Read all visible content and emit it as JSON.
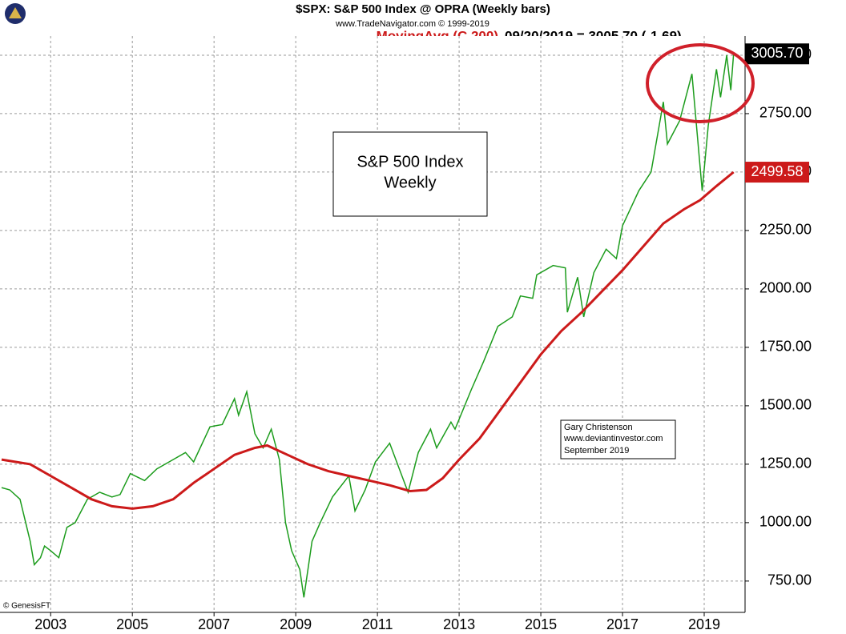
{
  "chart_data": {
    "type": "line",
    "title": "$SPX:  S&P 500 Index @ OPRA  (Weekly bars)",
    "subtitle": "www.TradeNavigator.com © 1999-2019",
    "indicator_name": "MovingAvg (C,200)",
    "indicator_value": "09/20/2019 = 3005.70 (-1.69)",
    "box_title": [
      "S&P 500 Index",
      "Weekly"
    ],
    "credit": [
      "Gary Christenson",
      "www.deviantinvestor.com",
      "September 2019"
    ],
    "copyright": "© GenesisFT",
    "xlim": [
      2001.76,
      2020.0
    ],
    "xticks": [
      2003,
      2005,
      2007,
      2009,
      2011,
      2013,
      2015,
      2017,
      2019
    ],
    "ylim": [
      616,
      3082
    ],
    "yticks": [
      {
        "value": 750,
        "label": "750.00"
      },
      {
        "value": 1000,
        "label": "1000.00"
      },
      {
        "value": 1250,
        "label": "1250.00"
      },
      {
        "value": 1500,
        "label": "1500.00"
      },
      {
        "value": 1750,
        "label": "1750.00"
      },
      {
        "value": 2000,
        "label": "2000.00"
      },
      {
        "value": 2250,
        "label": "2250.00"
      },
      {
        "value": 2500,
        "label": "2500.00"
      },
      {
        "value": 2750,
        "label": "2750.00"
      },
      {
        "value": 3000,
        "label": "3000.00"
      }
    ],
    "grid": true,
    "series": [
      {
        "name": "$SPX",
        "color": "#1c9c1c",
        "label_color": "#000000",
        "last_value_label": "3005.70",
        "x": [
          2001.8,
          2002.0,
          2002.25,
          2002.5,
          2002.6,
          2002.75,
          2002.85,
          2003.0,
          2003.2,
          2003.4,
          2003.6,
          2003.9,
          2004.2,
          2004.5,
          2004.7,
          2004.95,
          2005.3,
          2005.6,
          2005.9,
          2006.3,
          2006.5,
          2006.9,
          2007.2,
          2007.5,
          2007.6,
          2007.8,
          2008.0,
          2008.2,
          2008.4,
          2008.6,
          2008.75,
          2008.9,
          2009.1,
          2009.2,
          2009.4,
          2009.6,
          2009.9,
          2010.3,
          2010.45,
          2010.7,
          2010.95,
          2011.3,
          2011.6,
          2011.75,
          2012.0,
          2012.3,
          2012.45,
          2012.8,
          2012.9,
          2013.3,
          2013.6,
          2013.95,
          2014.3,
          2014.5,
          2014.8,
          2014.9,
          2015.3,
          2015.6,
          2015.65,
          2015.9,
          2016.05,
          2016.3,
          2016.6,
          2016.85,
          2017.0,
          2017.4,
          2017.7,
          2018.0,
          2018.1,
          2018.4,
          2018.7,
          2018.95,
          2019.1,
          2019.3,
          2019.4,
          2019.55,
          2019.65,
          2019.72
        ],
        "values": [
          1150,
          1140,
          1100,
          920,
          820,
          850,
          900,
          880,
          850,
          980,
          1000,
          1100,
          1130,
          1110,
          1120,
          1210,
          1180,
          1230,
          1260,
          1300,
          1260,
          1410,
          1420,
          1530,
          1460,
          1560,
          1380,
          1320,
          1400,
          1270,
          1000,
          880,
          800,
          680,
          920,
          1000,
          1110,
          1200,
          1050,
          1140,
          1260,
          1340,
          1200,
          1130,
          1300,
          1400,
          1320,
          1430,
          1400,
          1570,
          1690,
          1840,
          1880,
          1970,
          1960,
          2060,
          2100,
          2090,
          1900,
          2050,
          1880,
          2070,
          2170,
          2130,
          2270,
          2420,
          2500,
          2800,
          2620,
          2720,
          2920,
          2420,
          2700,
          2940,
          2820,
          3000,
          2850,
          3005.7
        ]
      },
      {
        "name": "MovingAvg (C,200)",
        "color": "#cc1a1a",
        "label_color": "#cc1a1a",
        "last_value_label": "2499.58",
        "x": [
          2001.8,
          2002.5,
          2003.0,
          2003.5,
          2004.0,
          2004.5,
          2005.0,
          2005.5,
          2006.0,
          2006.5,
          2007.0,
          2007.5,
          2008.0,
          2008.3,
          2008.8,
          2009.3,
          2009.8,
          2010.3,
          2010.8,
          2011.3,
          2011.8,
          2012.2,
          2012.6,
          2013.0,
          2013.5,
          2014.0,
          2014.5,
          2015.0,
          2015.5,
          2016.0,
          2016.5,
          2017.0,
          2017.5,
          2018.0,
          2018.5,
          2018.9,
          2019.3,
          2019.72
        ],
        "values": [
          1270,
          1250,
          1200,
          1150,
          1100,
          1070,
          1060,
          1070,
          1100,
          1170,
          1230,
          1290,
          1320,
          1330,
          1290,
          1250,
          1220,
          1200,
          1180,
          1160,
          1135,
          1140,
          1190,
          1270,
          1360,
          1480,
          1600,
          1720,
          1820,
          1900,
          1990,
          2080,
          2180,
          2280,
          2340,
          2380,
          2440,
          2499.58
        ]
      }
    ]
  }
}
